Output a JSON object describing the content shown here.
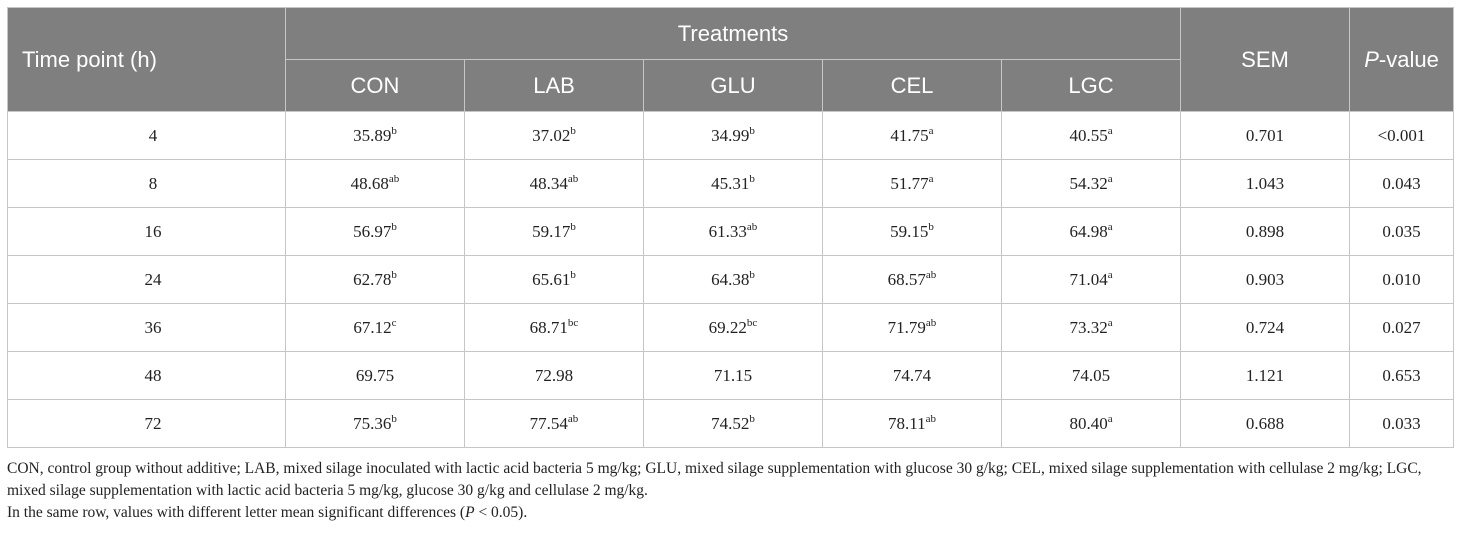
{
  "header": {
    "time_point": "Time point (h)",
    "treatments": "Treatments",
    "sem": "SEM",
    "p_value_italic": "P",
    "p_value_suffix": "-value",
    "columns": [
      "CON",
      "LAB",
      "GLU",
      "CEL",
      "LGC"
    ]
  },
  "rows": [
    {
      "t": "4",
      "cells": [
        {
          "v": "35.89",
          "s": "b"
        },
        {
          "v": "37.02",
          "s": "b"
        },
        {
          "v": "34.99",
          "s": "b"
        },
        {
          "v": "41.75",
          "s": "a"
        },
        {
          "v": "40.55",
          "s": "a"
        }
      ],
      "sem": "0.701",
      "p": "<0.001"
    },
    {
      "t": "8",
      "cells": [
        {
          "v": "48.68",
          "s": "ab"
        },
        {
          "v": "48.34",
          "s": "ab"
        },
        {
          "v": "45.31",
          "s": "b"
        },
        {
          "v": "51.77",
          "s": "a"
        },
        {
          "v": "54.32",
          "s": "a"
        }
      ],
      "sem": "1.043",
      "p": "0.043"
    },
    {
      "t": "16",
      "cells": [
        {
          "v": "56.97",
          "s": "b"
        },
        {
          "v": "59.17",
          "s": "b"
        },
        {
          "v": "61.33",
          "s": "ab"
        },
        {
          "v": "59.15",
          "s": "b"
        },
        {
          "v": "64.98",
          "s": "a"
        }
      ],
      "sem": "0.898",
      "p": "0.035"
    },
    {
      "t": "24",
      "cells": [
        {
          "v": "62.78",
          "s": "b"
        },
        {
          "v": "65.61",
          "s": "b"
        },
        {
          "v": "64.38",
          "s": "b"
        },
        {
          "v": "68.57",
          "s": "ab"
        },
        {
          "v": "71.04",
          "s": "a"
        }
      ],
      "sem": "0.903",
      "p": "0.010"
    },
    {
      "t": "36",
      "cells": [
        {
          "v": "67.12",
          "s": "c"
        },
        {
          "v": "68.71",
          "s": "bc"
        },
        {
          "v": "69.22",
          "s": "bc"
        },
        {
          "v": "71.79",
          "s": "ab"
        },
        {
          "v": "73.32",
          "s": "a"
        }
      ],
      "sem": "0.724",
      "p": "0.027"
    },
    {
      "t": "48",
      "cells": [
        {
          "v": "69.75",
          "s": ""
        },
        {
          "v": "72.98",
          "s": ""
        },
        {
          "v": "71.15",
          "s": ""
        },
        {
          "v": "74.74",
          "s": ""
        },
        {
          "v": "74.05",
          "s": ""
        }
      ],
      "sem": "1.121",
      "p": "0.653"
    },
    {
      "t": "72",
      "cells": [
        {
          "v": "75.36",
          "s": "b"
        },
        {
          "v": "77.54",
          "s": "ab"
        },
        {
          "v": "74.52",
          "s": "b"
        },
        {
          "v": "78.11",
          "s": "ab"
        },
        {
          "v": "80.40",
          "s": "a"
        }
      ],
      "sem": "0.688",
      "p": "0.033"
    }
  ],
  "notes": {
    "abbreviations": "CON, control group without additive; LAB, mixed silage inoculated with lactic acid bacteria 5 mg/kg; GLU, mixed silage supplementation with glucose 30 g/kg; CEL, mixed silage supplementation with cellulase 2 mg/kg; LGC, mixed silage supplementation with lactic acid bacteria 5 mg/kg, glucose 30 g/kg and cellulase 2 mg/kg.",
    "significance_prefix": "In the same row, values with different letter mean significant differences (",
    "significance_italic": "P",
    "significance_suffix": " < 0.05)."
  }
}
